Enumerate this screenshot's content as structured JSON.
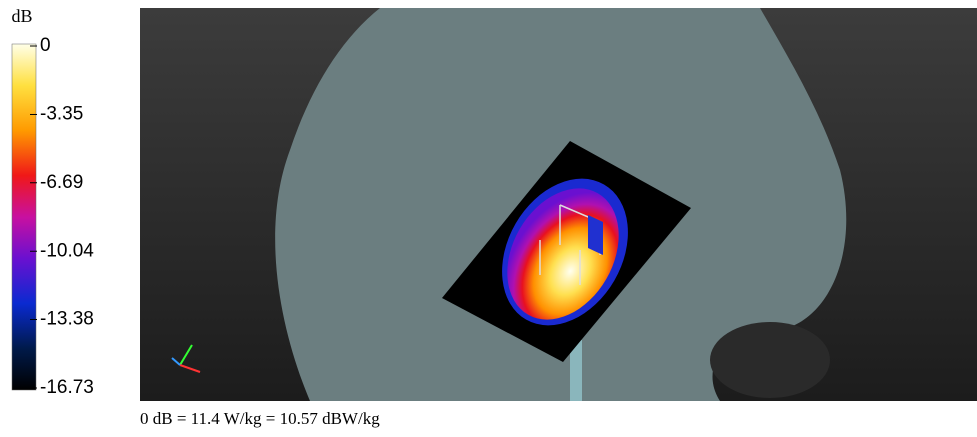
{
  "colorbar": {
    "unit": "dB",
    "ticks": [
      0,
      -3.35,
      -6.69,
      -10.04,
      -13.38,
      -16.73
    ]
  },
  "caption": "0 dB = 11.4 W/kg = 10.57 dBW/kg"
}
